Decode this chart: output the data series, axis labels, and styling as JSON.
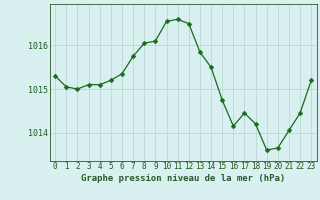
{
  "x": [
    0,
    1,
    2,
    3,
    4,
    5,
    6,
    7,
    8,
    9,
    10,
    11,
    12,
    13,
    14,
    15,
    16,
    17,
    18,
    19,
    20,
    21,
    22,
    23
  ],
  "y": [
    1015.3,
    1015.05,
    1015.0,
    1015.1,
    1015.1,
    1015.2,
    1015.35,
    1015.75,
    1016.05,
    1016.1,
    1016.55,
    1016.6,
    1016.5,
    1015.85,
    1015.5,
    1014.75,
    1014.15,
    1014.45,
    1014.2,
    1013.6,
    1013.65,
    1014.05,
    1014.45,
    1015.2
  ],
  "line_color": "#1a6b1a",
  "marker": "D",
  "marker_size": 2.5,
  "bg_color": "#d8f0f0",
  "grid_color": "#b8d0d0",
  "axis_label_color": "#2a5a2a",
  "tick_color": "#1a5a1a",
  "title": "Graphe pression niveau de la mer (hPa)",
  "yticks": [
    1014,
    1015,
    1016
  ],
  "ylim": [
    1013.35,
    1016.95
  ],
  "xlim": [
    -0.5,
    23.5
  ],
  "xticks": [
    0,
    1,
    2,
    3,
    4,
    5,
    6,
    7,
    8,
    9,
    10,
    11,
    12,
    13,
    14,
    15,
    16,
    17,
    18,
    19,
    20,
    21,
    22,
    23
  ],
  "xtick_fontsize": 5.5,
  "ytick_fontsize": 6.0,
  "xlabel_fontsize": 6.5,
  "linewidth": 0.9
}
